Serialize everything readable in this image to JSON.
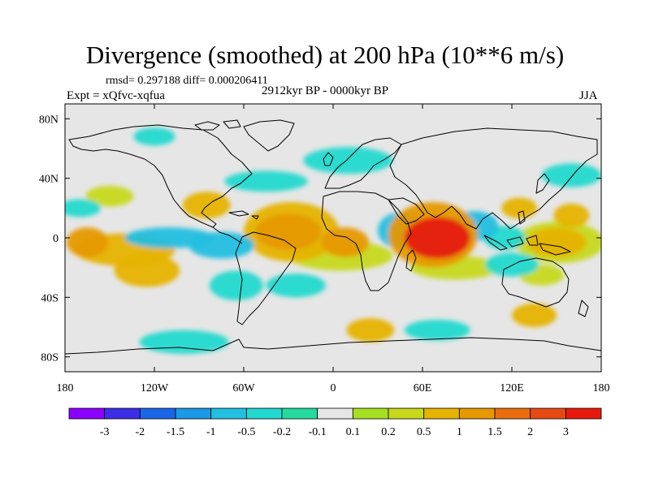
{
  "chart_data": {
    "type": "heatmap",
    "title": "Divergence (smoothed) at 200 hPa (10**6 m/s)",
    "stats_text": "rmsd= 0.297188 diff= 0.000206411",
    "experiment_text": "Expt = xQfvc-xqfua",
    "period_text": "2912kyr BP - 0000kyr BP",
    "season": "JJA",
    "xlim": [
      -180,
      180
    ],
    "ylim": [
      -90,
      90
    ],
    "x_ticks": [
      {
        "value": -180,
        "label": "180"
      },
      {
        "value": -120,
        "label": "120W"
      },
      {
        "value": -60,
        "label": "60W"
      },
      {
        "value": 0,
        "label": "0"
      },
      {
        "value": 60,
        "label": "60E"
      },
      {
        "value": 120,
        "label": "120E"
      },
      {
        "value": 180,
        "label": "180"
      }
    ],
    "y_ticks": [
      {
        "value": 80,
        "label": "80N"
      },
      {
        "value": 40,
        "label": "40N"
      },
      {
        "value": 0,
        "label": "0"
      },
      {
        "value": -40,
        "label": "40S"
      },
      {
        "value": -80,
        "label": "80S"
      }
    ],
    "colorbar": {
      "colors": [
        "#8c00ff",
        "#3d2ee6",
        "#1a66e6",
        "#1a99e6",
        "#22bfe0",
        "#22d9cf",
        "#26d99e",
        "#e6e6e6",
        "#a6e022",
        "#c7d91a",
        "#e6b300",
        "#e69900",
        "#ea6e0d",
        "#e64a12",
        "#e61a0d"
      ],
      "labels": [
        "-3",
        "-2",
        "-1.5",
        "-1",
        "-0.5",
        "-0.2",
        "-0.1",
        "0.1",
        "0.2",
        "0.5",
        "1",
        "1.5",
        "2",
        "3"
      ]
    },
    "features": [
      {
        "name": "arabian-sea-max",
        "lon": 70,
        "lat": 0,
        "rx": 22,
        "ry": 14,
        "value": 3.2
      },
      {
        "name": "arabian-sea-halo",
        "lon": 67,
        "lat": 2,
        "rx": 30,
        "ry": 22,
        "value": 1.2
      },
      {
        "name": "tropical-atlantic-pos",
        "lon": -30,
        "lat": 4,
        "rx": 22,
        "ry": 12,
        "value": 1.3
      },
      {
        "name": "tropical-atlantic-halo",
        "lon": -28,
        "lat": 4,
        "rx": 32,
        "ry": 20,
        "value": 0.6
      },
      {
        "name": "west-africa-pos",
        "lon": 8,
        "lat": -3,
        "rx": 16,
        "ry": 10,
        "value": 1.1
      },
      {
        "name": "south-atlantic-band",
        "lon": 5,
        "lat": -12,
        "rx": 35,
        "ry": 10,
        "value": 0.4
      },
      {
        "name": "equatorial-east-pacific-pos",
        "lon": -165,
        "lat": -3,
        "rx": 14,
        "ry": 10,
        "value": 1.2
      },
      {
        "name": "east-pacific-band",
        "lon": -140,
        "lat": -8,
        "rx": 34,
        "ry": 11,
        "value": 0.5
      },
      {
        "name": "south-pacific-pos",
        "lon": -125,
        "lat": -22,
        "rx": 22,
        "ry": 11,
        "value": 0.7
      },
      {
        "name": "west-pacific-pos",
        "lon": 150,
        "lat": -3,
        "rx": 20,
        "ry": 10,
        "value": 0.9
      },
      {
        "name": "west-pacific-halo",
        "lon": 152,
        "lat": -3,
        "rx": 30,
        "ry": 14,
        "value": 0.4
      },
      {
        "name": "caribbean-pos",
        "lon": -85,
        "lat": 22,
        "rx": 16,
        "ry": 9,
        "value": 0.8
      },
      {
        "name": "north-pacific-pos",
        "lon": -150,
        "lat": 28,
        "rx": 16,
        "ry": 7,
        "value": 0.4
      },
      {
        "name": "east-asia-pos",
        "lon": 125,
        "lat": 20,
        "rx": 12,
        "ry": 7,
        "value": 0.9
      },
      {
        "name": "east-asia-pos2",
        "lon": 160,
        "lat": 15,
        "rx": 12,
        "ry": 8,
        "value": 0.5
      },
      {
        "name": "indian-ocean-south-pos",
        "lon": 82,
        "lat": -20,
        "rx": 30,
        "ry": 8,
        "value": 0.4
      },
      {
        "name": "south-indian-pos",
        "lon": 140,
        "lat": -25,
        "rx": 15,
        "ry": 7,
        "value": 0.4
      },
      {
        "name": "southern-ocean-pos1",
        "lon": 25,
        "lat": -62,
        "rx": 16,
        "ry": 8,
        "value": 0.5
      },
      {
        "name": "southern-ocean-pos2",
        "lon": 135,
        "lat": -52,
        "rx": 15,
        "ry": 8,
        "value": 0.5
      },
      {
        "name": "amazon-neg",
        "lon": -75,
        "lat": -5,
        "rx": 22,
        "ry": 9,
        "value": -0.8
      },
      {
        "name": "central-pacific-neg",
        "lon": -110,
        "lat": 0,
        "rx": 30,
        "ry": 7,
        "value": -0.6
      },
      {
        "name": "africa-east-neg",
        "lon": 45,
        "lat": 5,
        "rx": 15,
        "ry": 12,
        "value": -0.7
      },
      {
        "name": "bay-bengal-neg",
        "lon": 95,
        "lat": 8,
        "rx": 16,
        "ry": 10,
        "value": -0.8
      },
      {
        "name": "maritime-cont-neg",
        "lon": 115,
        "lat": 0,
        "rx": 14,
        "ry": 8,
        "value": -0.5
      },
      {
        "name": "north-atlantic-neg",
        "lon": -45,
        "lat": 38,
        "rx": 28,
        "ry": 7,
        "value": -0.5
      },
      {
        "name": "europe-neg",
        "lon": 10,
        "lat": 52,
        "rx": 30,
        "ry": 9,
        "value": -0.4
      },
      {
        "name": "south-america-neg",
        "lon": -65,
        "lat": -32,
        "rx": 18,
        "ry": 10,
        "value": -0.5
      },
      {
        "name": "south-atlantic-neg",
        "lon": -25,
        "lat": -32,
        "rx": 20,
        "ry": 8,
        "value": -0.4
      },
      {
        "name": "australia-neg",
        "lon": 120,
        "lat": -18,
        "rx": 18,
        "ry": 8,
        "value": -0.4
      },
      {
        "name": "southern-ocean-neg1",
        "lon": -100,
        "lat": -70,
        "rx": 30,
        "ry": 8,
        "value": -0.4
      },
      {
        "name": "southern-ocean-neg2",
        "lon": 70,
        "lat": -62,
        "rx": 22,
        "ry": 7,
        "value": -0.4
      },
      {
        "name": "arctic-neg",
        "lon": -120,
        "lat": 68,
        "rx": 14,
        "ry": 6,
        "value": -0.4
      },
      {
        "name": "north-pacific-neg",
        "lon": 160,
        "lat": 42,
        "rx": 20,
        "ry": 8,
        "value": -0.4
      },
      {
        "name": "east-pacific-neg",
        "lon": -170,
        "lat": 20,
        "rx": 14,
        "ry": 6,
        "value": -0.5
      }
    ]
  }
}
